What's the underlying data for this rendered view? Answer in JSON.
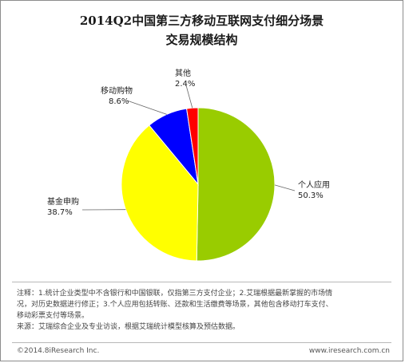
{
  "chart_data": {
    "type": "pie",
    "title": "2014Q2中国第三方移动互联网支付细分场景",
    "subtitle": "交易规模结构",
    "slices": [
      {
        "label": "个人应用",
        "value": 50.3,
        "value_label": "50.3%",
        "color": "#99cc00"
      },
      {
        "label": "基金申购",
        "value": 38.7,
        "value_label": "38.7%",
        "color": "#ffff00"
      },
      {
        "label": "移动购物",
        "value": 8.6,
        "value_label": "8.6%",
        "color": "#0000ff"
      },
      {
        "label": "其他",
        "value": 2.4,
        "value_label": "2.4%",
        "color": "#ff0000"
      }
    ]
  },
  "notes": {
    "note_1": "注释：1.统计企业类型中不含银行和中国银联，仅指第三方支付企业；2.艾瑞根据最新掌握的市场情",
    "note_2": "况，对历史数据进行修正；3.个人应用包括转账、还款和生活缴费等场景，其他包含移动打车支付、",
    "note_3": "移动彩票支付等场景。",
    "source": "来源：艾瑞综合企业及专业访谈，根据艾瑞统计模型核算及预估数据。"
  },
  "footer": {
    "copyright": "©2014.8iResearch Inc.",
    "website": "www.iresearch.com.cn"
  }
}
